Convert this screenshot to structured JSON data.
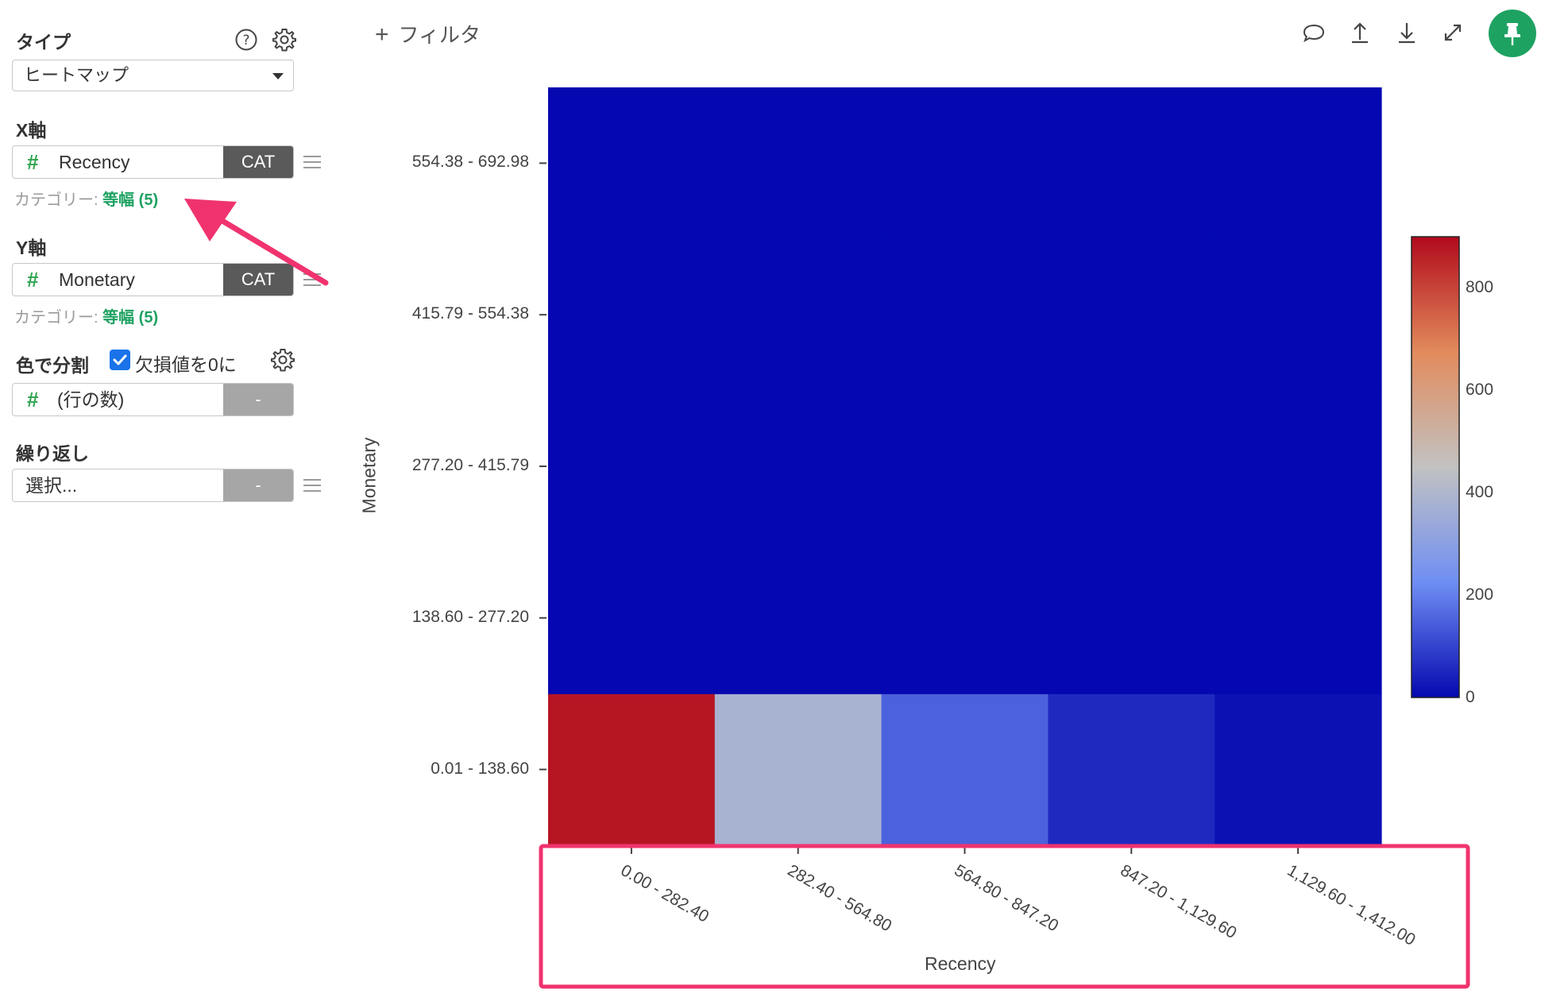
{
  "sidebar": {
    "type_label": "タイプ",
    "type_value": "ヒートマップ",
    "x_axis_label": "X軸",
    "x_field": {
      "name": "Recency",
      "tag": "CAT"
    },
    "x_category_prefix": "カテゴリー:",
    "x_category_value": "等幅 (5)",
    "y_axis_label": "Y軸",
    "y_field": {
      "name": "Monetary",
      "tag": "CAT"
    },
    "y_category_prefix": "カテゴリー:",
    "y_category_value": "等幅 (5)",
    "color_label": "色で分割",
    "missing_zero_label": "欠損値を0に",
    "missing_zero_checked": true,
    "color_field": {
      "name": "(行の数)",
      "tag": "-"
    },
    "repeat_label": "繰り返し",
    "repeat_field": {
      "name": "選択...",
      "tag": "-"
    }
  },
  "toolbar": {
    "filter_label": "フィルタ",
    "icons": [
      "comment-icon",
      "upload-icon",
      "download-icon",
      "expand-icon",
      "pin-icon"
    ]
  },
  "chart_data": {
    "type": "heatmap",
    "xlabel": "Recency",
    "ylabel": "Monetary",
    "x_categories": [
      "0.00 - 282.40",
      "282.40 - 564.80",
      "564.80 - 847.20",
      "847.20 - 1,129.60",
      "1,129.60 - 1,412.00"
    ],
    "y_categories": [
      "0.01 - 138.60",
      "138.60 - 277.20",
      "277.20 - 415.79",
      "415.79 - 554.38",
      "554.38 - 692.98"
    ],
    "values": [
      [
        880,
        380,
        150,
        55,
        15
      ],
      [
        0,
        0,
        0,
        0,
        0
      ],
      [
        0,
        0,
        0,
        0,
        0
      ],
      [
        0,
        0,
        0,
        0,
        0
      ],
      [
        0,
        0,
        0,
        0,
        0
      ]
    ],
    "colorbar": {
      "min": 0,
      "max": 900,
      "ticks": [
        0,
        200,
        400,
        600,
        800
      ]
    },
    "colorscale": [
      "#0508b0",
      "#6f8ef3",
      "#c2c2c2",
      "#e28b5c",
      "#b20a1c"
    ]
  },
  "colors": {
    "accent_green": "#1ea262",
    "annotation_pink": "#f0336e",
    "pin_button": "#1ea262"
  }
}
